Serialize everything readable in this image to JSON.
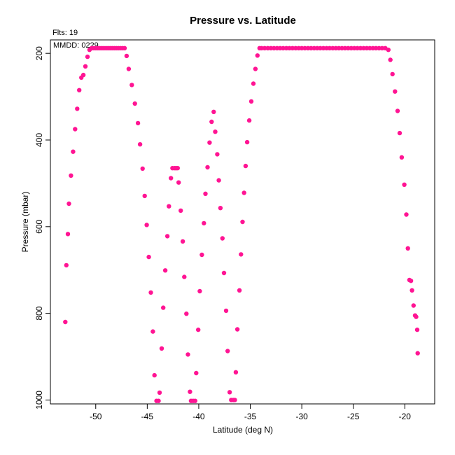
{
  "chart_data": {
    "type": "scatter",
    "title": "Pressure vs. Latitude",
    "xlabel": "Latitude (deg N)",
    "ylabel": "Pressure (mbar)",
    "xlim": [
      -54.4,
      -17.1
    ],
    "ylim": [
      1009,
      169
    ],
    "y_inverted": true,
    "x_ticks": [
      -50,
      -45,
      -40,
      -35,
      -30,
      -25,
      -20
    ],
    "x_tick_labels": [
      "-50",
      "-45",
      "-40",
      "-35",
      "-30",
      "-25",
      "-20"
    ],
    "y_ticks": [
      200,
      400,
      600,
      800,
      1000
    ],
    "y_tick_labels": [
      "200",
      "400",
      "600",
      "800",
      "1000"
    ],
    "grid": false,
    "marker_color": "#ff1493",
    "annotations": [
      "Flts: 19",
      "MMDD: 0229"
    ],
    "series": [
      {
        "points": [
          [
            -52.95,
            820
          ],
          [
            -52.85,
            689
          ],
          [
            -52.7,
            617
          ],
          [
            -52.6,
            547
          ],
          [
            -52.4,
            482
          ],
          [
            -52.2,
            427
          ],
          [
            -52.0,
            375
          ],
          [
            -51.8,
            328
          ],
          [
            -51.6,
            285
          ],
          [
            -51.4,
            256
          ],
          [
            -51.2,
            250
          ],
          [
            -51.0,
            230
          ],
          [
            -50.8,
            208
          ],
          [
            -50.6,
            192
          ],
          [
            -50.4,
            188
          ],
          [
            -50.2,
            188
          ],
          [
            -50.0,
            188
          ],
          [
            -49.8,
            188
          ],
          [
            -49.6,
            188
          ],
          [
            -49.4,
            188
          ],
          [
            -49.2,
            188
          ],
          [
            -49.0,
            188
          ],
          [
            -48.8,
            188
          ],
          [
            -48.6,
            188
          ],
          [
            -48.4,
            188
          ],
          [
            -48.2,
            188
          ],
          [
            -48.0,
            188
          ],
          [
            -47.8,
            188
          ],
          [
            -47.6,
            188
          ],
          [
            -47.4,
            188
          ],
          [
            -47.2,
            188
          ],
          [
            -47.0,
            206
          ],
          [
            -46.8,
            236
          ],
          [
            -46.5,
            273
          ],
          [
            -46.2,
            316
          ],
          [
            -45.9,
            361
          ],
          [
            -45.7,
            410
          ],
          [
            -45.45,
            466
          ],
          [
            -45.25,
            529
          ],
          [
            -45.05,
            596
          ],
          [
            -44.85,
            670
          ],
          [
            -44.65,
            752
          ],
          [
            -44.45,
            842
          ],
          [
            -44.3,
            943
          ],
          [
            -44.1,
            1002
          ],
          [
            -43.9,
            1002
          ],
          [
            -43.8,
            983
          ],
          [
            -43.6,
            881
          ],
          [
            -43.45,
            787
          ],
          [
            -43.25,
            701
          ],
          [
            -43.05,
            622
          ],
          [
            -42.9,
            553
          ],
          [
            -42.7,
            488
          ],
          [
            -42.55,
            465
          ],
          [
            -42.35,
            465
          ],
          [
            -42.2,
            465
          ],
          [
            -42.05,
            465
          ],
          [
            -41.95,
            498
          ],
          [
            -41.75,
            563
          ],
          [
            -41.55,
            634
          ],
          [
            -41.4,
            716
          ],
          [
            -41.2,
            801
          ],
          [
            -41.05,
            895
          ],
          [
            -40.85,
            981
          ],
          [
            -40.75,
            1002
          ],
          [
            -40.55,
            1002
          ],
          [
            -40.35,
            1002
          ],
          [
            -40.25,
            938
          ],
          [
            -40.05,
            838
          ],
          [
            -39.9,
            749
          ],
          [
            -39.7,
            665
          ],
          [
            -39.5,
            592
          ],
          [
            -39.35,
            524
          ],
          [
            -39.15,
            463
          ],
          [
            -38.95,
            406
          ],
          [
            -38.75,
            358
          ],
          [
            -38.55,
            335
          ],
          [
            -38.4,
            381
          ],
          [
            -38.2,
            433
          ],
          [
            -38.05,
            493
          ],
          [
            -37.9,
            557
          ],
          [
            -37.7,
            627
          ],
          [
            -37.55,
            707
          ],
          [
            -37.35,
            794
          ],
          [
            -37.2,
            887
          ],
          [
            -37.0,
            982
          ],
          [
            -36.85,
            1000
          ],
          [
            -36.65,
            1000
          ],
          [
            -36.5,
            1000
          ],
          [
            -36.4,
            936
          ],
          [
            -36.25,
            837
          ],
          [
            -36.05,
            747
          ],
          [
            -35.9,
            664
          ],
          [
            -35.75,
            589
          ],
          [
            -35.6,
            522
          ],
          [
            -35.45,
            460
          ],
          [
            -35.3,
            405
          ],
          [
            -35.1,
            355
          ],
          [
            -34.9,
            311
          ],
          [
            -34.7,
            270
          ],
          [
            -34.5,
            236
          ],
          [
            -34.3,
            205
          ],
          [
            -34.1,
            188
          ],
          [
            -33.9,
            188
          ],
          [
            -33.6,
            188
          ],
          [
            -33.3,
            188
          ],
          [
            -33.0,
            188
          ],
          [
            -32.7,
            188
          ],
          [
            -32.4,
            188
          ],
          [
            -32.1,
            188
          ],
          [
            -31.8,
            188
          ],
          [
            -31.5,
            188
          ],
          [
            -31.2,
            188
          ],
          [
            -30.9,
            188
          ],
          [
            -30.6,
            188
          ],
          [
            -30.3,
            188
          ],
          [
            -30.0,
            188
          ],
          [
            -29.7,
            188
          ],
          [
            -29.4,
            188
          ],
          [
            -29.1,
            188
          ],
          [
            -28.8,
            188
          ],
          [
            -28.5,
            188
          ],
          [
            -28.2,
            188
          ],
          [
            -27.9,
            188
          ],
          [
            -27.6,
            188
          ],
          [
            -27.3,
            188
          ],
          [
            -27.0,
            188
          ],
          [
            -26.7,
            188
          ],
          [
            -26.4,
            188
          ],
          [
            -26.1,
            188
          ],
          [
            -25.8,
            188
          ],
          [
            -25.5,
            188
          ],
          [
            -25.2,
            188
          ],
          [
            -24.9,
            188
          ],
          [
            -24.6,
            188
          ],
          [
            -24.3,
            188
          ],
          [
            -24.0,
            188
          ],
          [
            -23.7,
            188
          ],
          [
            -23.4,
            188
          ],
          [
            -23.1,
            188
          ],
          [
            -22.8,
            188
          ],
          [
            -22.5,
            188
          ],
          [
            -22.2,
            188
          ],
          [
            -21.9,
            188
          ],
          [
            -21.6,
            192
          ],
          [
            -21.4,
            215
          ],
          [
            -21.2,
            248
          ],
          [
            -20.95,
            288
          ],
          [
            -20.7,
            333
          ],
          [
            -20.5,
            384
          ],
          [
            -20.3,
            440
          ],
          [
            -20.05,
            503
          ],
          [
            -19.85,
            572
          ],
          [
            -19.7,
            650
          ],
          [
            -19.55,
            723
          ],
          [
            -19.4,
            725
          ],
          [
            -19.3,
            747
          ],
          [
            -19.15,
            782
          ],
          [
            -19.0,
            805
          ],
          [
            -18.9,
            808
          ],
          [
            -18.8,
            838
          ],
          [
            -18.75,
            892
          ]
        ]
      }
    ]
  }
}
